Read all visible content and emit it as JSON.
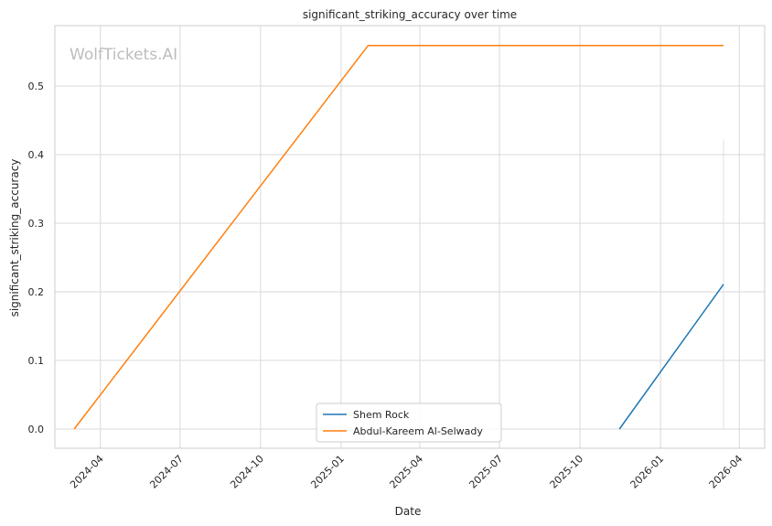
{
  "chart_data": {
    "type": "line",
    "title": "significant_striking_accuracy over time",
    "xlabel": "Date",
    "ylabel": "significant_striking_accuracy",
    "watermark": "WolfTickets.AI",
    "x_ticks": [
      "2024-04",
      "2024-07",
      "2024-10",
      "2025-01",
      "2025-04",
      "2025-07",
      "2025-10",
      "2026-01",
      "2026-04"
    ],
    "y_ticks": [
      "0.0",
      "0.1",
      "0.2",
      "0.3",
      "0.4",
      "0.5"
    ],
    "ylim": [
      -0.028,
      0.588
    ],
    "xlim": [
      "2024-02-09",
      "2026-04-30"
    ],
    "grid": true,
    "legend_position": "lower-center",
    "series": [
      {
        "name": "Shem Rock",
        "color": "#1f77b4",
        "points": [
          {
            "x": "2025-11-15",
            "y": 0.0
          },
          {
            "x": "2026-03-14",
            "y": 0.211
          }
        ]
      },
      {
        "name": "Abdul-Kareem Al-Selwady",
        "color": "#ff7f0e",
        "points": [
          {
            "x": "2024-03-02",
            "y": 0.0
          },
          {
            "x": "2025-02-01",
            "y": 0.559
          },
          {
            "x": "2026-03-14",
            "y": 0.559
          }
        ]
      }
    ],
    "vertical_marker": {
      "x": "2026-03-14",
      "y_range": [
        0,
        0.422
      ],
      "color": "#d5e4ee"
    }
  }
}
